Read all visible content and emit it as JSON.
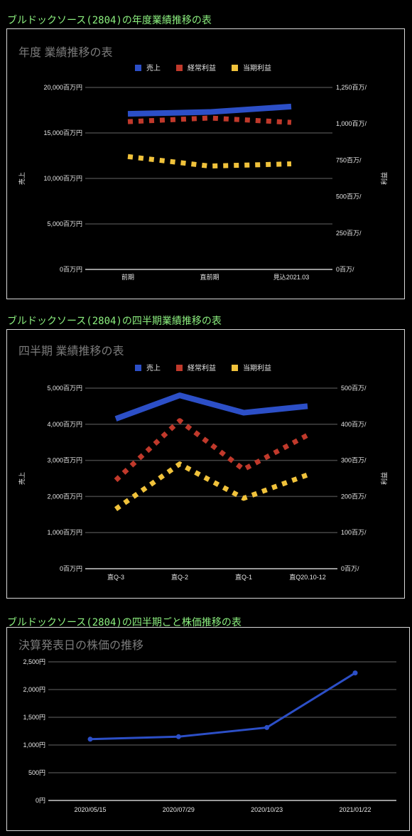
{
  "headings": {
    "annual": "ブルドックソース(2804)の年度業績推移の表",
    "quarterly": "ブルドックソース(2804)の四半期業績推移の表",
    "stock": "ブルドックソース(2804)の四半期ごと株価推移の表"
  },
  "chart_data": [
    {
      "type": "line",
      "title": "年度 業績推移の表",
      "categories": [
        "前期",
        "直前期",
        "見込2021.03"
      ],
      "series": [
        {
          "name": "売上",
          "axis": "left",
          "values": [
            17100,
            17300,
            17900
          ],
          "color": "#2c4fc7",
          "style": "solid"
        },
        {
          "name": "経常利益",
          "axis": "right",
          "values": [
            1015,
            1040,
            1010
          ],
          "color": "#c0392b",
          "style": "dotted"
        },
        {
          "name": "当期利益",
          "axis": "right",
          "values": [
            775,
            710,
            725
          ],
          "color": "#f0c23b",
          "style": "dotted"
        }
      ],
      "ylabel": "売上",
      "y2label": "利益",
      "ylim": [
        0,
        20000
      ],
      "y2lim": [
        0,
        1250
      ],
      "yticks": [
        "0百万円",
        "5,000百万円",
        "10,000百万円",
        "15,000百万円",
        "20,000百万円"
      ],
      "y2ticks": [
        "0百万/",
        "250百万/",
        "500百万/",
        "750百万/",
        "1,000百万/",
        "1,250百万/"
      ],
      "legend": "top",
      "grid": true
    },
    {
      "type": "line",
      "title": "四半期 業績推移の表",
      "categories": [
        "直Q-3",
        "直Q-2",
        "直Q-1",
        "直Q20.10-12"
      ],
      "series": [
        {
          "name": "売上",
          "axis": "left",
          "values": [
            4150,
            4800,
            4320,
            4500
          ],
          "color": "#2c4fc7",
          "style": "solid"
        },
        {
          "name": "経常利益",
          "axis": "right",
          "values": [
            245,
            410,
            275,
            370
          ],
          "color": "#c0392b",
          "style": "dotted"
        },
        {
          "name": "当期利益",
          "axis": "right",
          "values": [
            165,
            290,
            195,
            260
          ],
          "color": "#f0c23b",
          "style": "dotted"
        }
      ],
      "ylabel": "売上",
      "y2label": "利益",
      "ylim": [
        0,
        5000
      ],
      "y2lim": [
        0,
        500
      ],
      "yticks": [
        "0百万円",
        "1,000百万円",
        "2,000百万円",
        "3,000百万円",
        "4,000百万円",
        "5,000百万円"
      ],
      "y2ticks": [
        "0百万/",
        "100百万/",
        "200百万/",
        "300百万/",
        "400百万/",
        "500百万/"
      ],
      "legend": "top",
      "grid": true
    },
    {
      "type": "line",
      "title": "決算発表日の株価の推移",
      "categories": [
        "2020/05/15",
        "2020/07/29",
        "2020/10/23",
        "2021/01/22"
      ],
      "series": [
        {
          "values": [
            1105,
            1150,
            1315,
            2300
          ],
          "color": "#2c4fc7",
          "style": "solid",
          "markers": true
        }
      ],
      "ylim": [
        0,
        2500
      ],
      "yticks": [
        "0円",
        "500円",
        "1,000円",
        "1,500円",
        "2,000円",
        "2,500円"
      ],
      "grid": true
    }
  ]
}
